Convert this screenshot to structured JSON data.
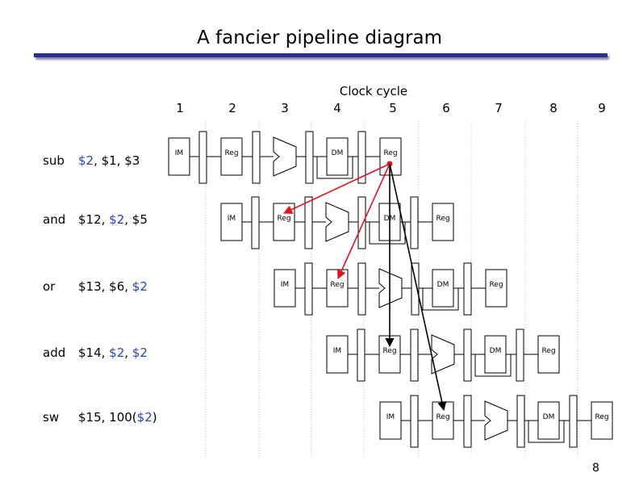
{
  "title": "A fancier pipeline diagram",
  "page_number": "8",
  "clock": {
    "label": "Clock cycle",
    "cycles": [
      "1",
      "2",
      "3",
      "4",
      "5",
      "6",
      "7",
      "8",
      "9"
    ]
  },
  "stage_labels": {
    "im": "IM",
    "reg": "Reg",
    "dm": "DM"
  },
  "colors": {
    "highlight": "#2640c8",
    "hazard_arrow": "#e0141e",
    "forward_arrow": "#000000",
    "title_bar": "#2b2f8f"
  },
  "instructions": [
    {
      "op": "sub",
      "args": [
        {
          "t": "$2",
          "hl": true
        },
        {
          "t": ", $1, $3",
          "hl": false
        }
      ]
    },
    {
      "op": "and",
      "args": [
        {
          "t": "$12, ",
          "hl": false
        },
        {
          "t": "$2",
          "hl": true
        },
        {
          "t": ", $5",
          "hl": false
        }
      ]
    },
    {
      "op": "or",
      "args": [
        {
          "t": "$13, $6, ",
          "hl": false
        },
        {
          "t": "$2",
          "hl": true
        }
      ]
    },
    {
      "op": "add",
      "args": [
        {
          "t": "$14, ",
          "hl": false
        },
        {
          "t": "$2",
          "hl": true
        },
        {
          "t": ", ",
          "hl": false
        },
        {
          "t": "$2",
          "hl": true
        }
      ]
    },
    {
      "op": "sw",
      "args": [
        {
          "t": "$15, 100(",
          "hl": false
        },
        {
          "t": "$2",
          "hl": true
        },
        {
          "t": ")",
          "hl": false
        }
      ]
    }
  ]
}
